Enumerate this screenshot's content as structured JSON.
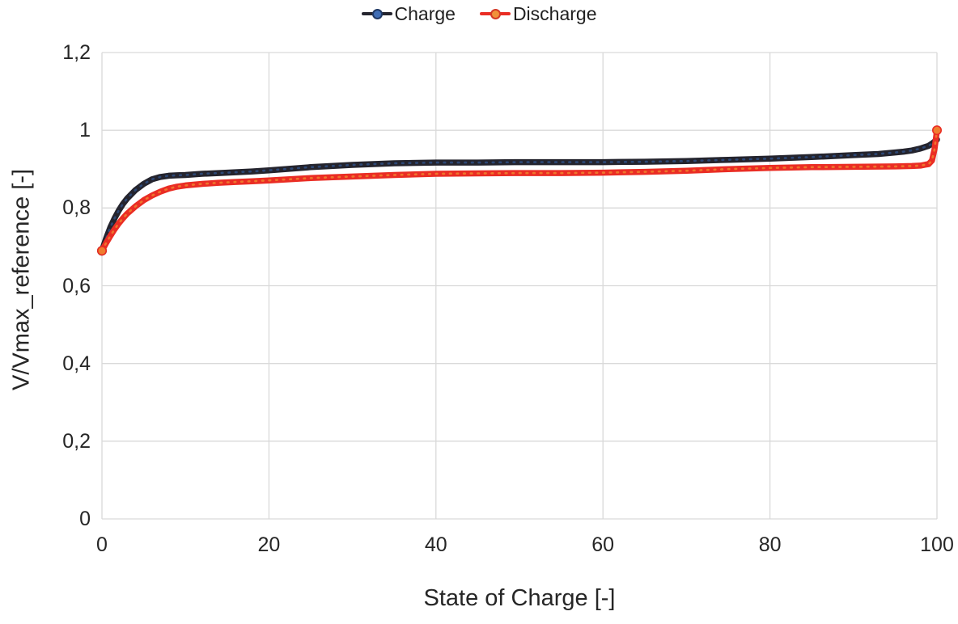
{
  "accent_colors": {
    "grid": "#d9d9d9",
    "text": "#262626",
    "background": "#ffffff"
  },
  "legend": {
    "items": [
      {
        "label": "Charge",
        "line_color": "#24242e",
        "marker_fill": "#3f6db5",
        "marker_border": "#1f3864"
      },
      {
        "label": "Discharge",
        "line_color": "#ea2d24",
        "marker_fill": "#f0913a",
        "marker_border": "#d43a27"
      }
    ]
  },
  "chart_data": {
    "type": "line",
    "title": "",
    "xlabel": "State of Charge [-]",
    "ylabel": "V/Vmax_reference [-]",
    "xlim": [
      0,
      100
    ],
    "ylim": [
      0,
      1.2
    ],
    "grid": true,
    "legend_position": "top-center",
    "x_tick_labels": [
      "0",
      "20",
      "40",
      "60",
      "80",
      "100"
    ],
    "x_tick_values": [
      0,
      20,
      40,
      60,
      80,
      100
    ],
    "y_tick_labels": [
      "0",
      "0,2",
      "0,4",
      "0,6",
      "0,8",
      "1",
      "1,2"
    ],
    "y_tick_values": [
      0,
      0.2,
      0.4,
      0.6,
      0.8,
      1.0,
      1.2
    ],
    "series": [
      {
        "name": "Charge",
        "line_color": "#24242e",
        "marker_color": "#2f4d7e",
        "x": [
          0,
          0.5,
          1,
          1.5,
          2,
          2.5,
          3,
          4,
          5,
          6,
          7,
          8,
          9,
          10,
          12,
          14,
          16,
          18,
          20,
          25,
          30,
          35,
          40,
          45,
          50,
          55,
          60,
          65,
          70,
          75,
          80,
          85,
          90,
          93,
          95,
          96,
          97,
          98,
          99,
          99.5,
          100
        ],
        "values": [
          0.69,
          0.722,
          0.75,
          0.773,
          0.793,
          0.81,
          0.824,
          0.846,
          0.862,
          0.874,
          0.88,
          0.883,
          0.884,
          0.885,
          0.888,
          0.89,
          0.892,
          0.894,
          0.897,
          0.905,
          0.911,
          0.915,
          0.917,
          0.917,
          0.918,
          0.918,
          0.918,
          0.919,
          0.921,
          0.924,
          0.927,
          0.931,
          0.936,
          0.939,
          0.943,
          0.945,
          0.948,
          0.953,
          0.96,
          0.967,
          0.976
        ],
        "start_marker": true,
        "end_marker": false
      },
      {
        "name": "Discharge",
        "line_color": "#ea2d24",
        "marker_color": "#ef7d2e",
        "x": [
          0,
          0.5,
          1,
          1.5,
          2,
          2.5,
          3,
          4,
          5,
          6,
          7,
          8,
          9,
          10,
          12,
          14,
          16,
          18,
          20,
          25,
          30,
          35,
          40,
          45,
          50,
          55,
          60,
          65,
          70,
          75,
          80,
          85,
          90,
          95,
          97,
          98,
          99,
          99.4,
          99.7,
          100
        ],
        "values": [
          0.69,
          0.71,
          0.728,
          0.745,
          0.76,
          0.773,
          0.785,
          0.804,
          0.82,
          0.832,
          0.842,
          0.85,
          0.855,
          0.858,
          0.862,
          0.865,
          0.867,
          0.869,
          0.871,
          0.877,
          0.881,
          0.885,
          0.888,
          0.889,
          0.89,
          0.89,
          0.891,
          0.893,
          0.896,
          0.9,
          0.903,
          0.905,
          0.906,
          0.907,
          0.908,
          0.909,
          0.913,
          0.922,
          0.95,
          1.0
        ],
        "start_marker": true,
        "end_marker": true
      }
    ]
  }
}
